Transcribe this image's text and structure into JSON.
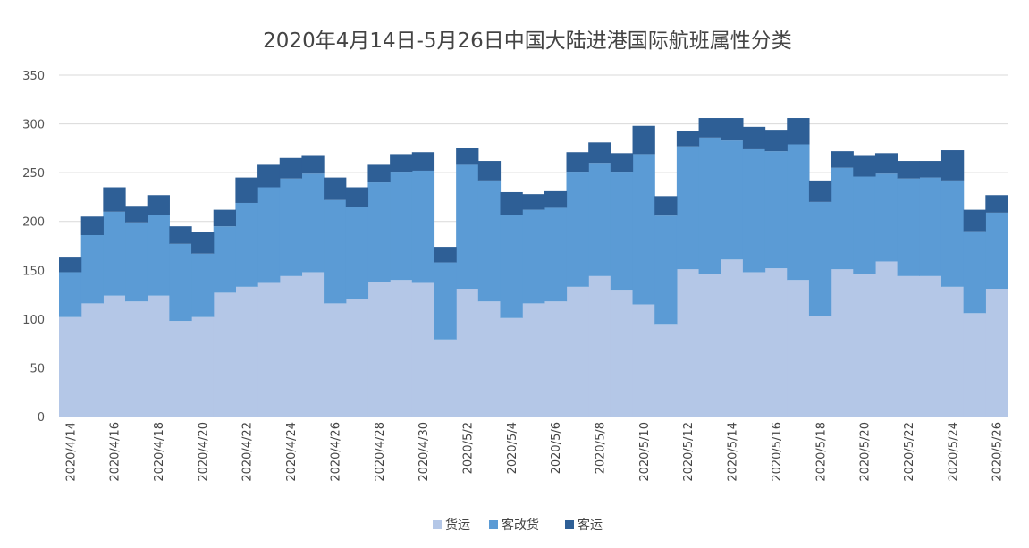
{
  "chart_data": {
    "type": "area",
    "stacked": true,
    "step": true,
    "title": "2020年4月14日-5月26日中国大陆进港国际航班属性分类",
    "xlabel": "",
    "ylabel": "",
    "ylim": [
      0,
      350
    ],
    "yticks": [
      0,
      50,
      100,
      150,
      200,
      250,
      300,
      350
    ],
    "grid": true,
    "legend_position": "bottom",
    "x": [
      "2020/4/14",
      "2020/4/15",
      "2020/4/16",
      "2020/4/17",
      "2020/4/18",
      "2020/4/19",
      "2020/4/20",
      "2020/4/21",
      "2020/4/22",
      "2020/4/23",
      "2020/4/24",
      "2020/4/25",
      "2020/4/26",
      "2020/4/27",
      "2020/4/28",
      "2020/4/29",
      "2020/4/30",
      "2020/5/1",
      "2020/5/2",
      "2020/5/3",
      "2020/5/4",
      "2020/5/5",
      "2020/5/6",
      "2020/5/7",
      "2020/5/8",
      "2020/5/9",
      "2020/5/10",
      "2020/5/11",
      "2020/5/12",
      "2020/5/13",
      "2020/5/14",
      "2020/5/15",
      "2020/5/16",
      "2020/5/17",
      "2020/5/18",
      "2020/5/19",
      "2020/5/20",
      "2020/5/21",
      "2020/5/22",
      "2020/5/23",
      "2020/5/24",
      "2020/5/25",
      "2020/5/26"
    ],
    "xtick_labels": [
      "2020/4/14",
      "2020/4/16",
      "2020/4/18",
      "2020/4/20",
      "2020/4/22",
      "2020/4/24",
      "2020/4/26",
      "2020/4/28",
      "2020/4/30",
      "2020/5/2",
      "2020/5/4",
      "2020/5/6",
      "2020/5/8",
      "2020/5/10",
      "2020/5/12",
      "2020/5/14",
      "2020/5/16",
      "2020/5/18",
      "2020/5/20",
      "2020/5/22",
      "2020/5/24",
      "2020/5/26"
    ],
    "series": [
      {
        "name": "货运",
        "color": "#b4c7e7",
        "values": [
          102,
          116,
          124,
          118,
          124,
          98,
          102,
          127,
          133,
          137,
          144,
          148,
          116,
          120,
          138,
          140,
          137,
          79,
          131,
          118,
          101,
          116,
          118,
          133,
          144,
          130,
          115,
          95,
          151,
          146,
          161,
          148,
          152,
          140,
          103,
          151,
          146,
          159,
          144,
          144,
          133,
          106,
          131
        ]
      },
      {
        "name": "客改货",
        "color": "#5b9bd5",
        "values": [
          46,
          70,
          86,
          81,
          83,
          79,
          65,
          68,
          86,
          98,
          100,
          101,
          106,
          95,
          102,
          111,
          115,
          79,
          127,
          124,
          106,
          96,
          96,
          118,
          116,
          121,
          154,
          111,
          126,
          140,
          122,
          126,
          120,
          139,
          117,
          104,
          100,
          90,
          100,
          101,
          109,
          84,
          78
        ]
      },
      {
        "name": "客运",
        "color": "#2e5f96",
        "values": [
          15,
          19,
          25,
          17,
          20,
          18,
          22,
          17,
          26,
          23,
          21,
          19,
          23,
          20,
          18,
          18,
          19,
          16,
          17,
          20,
          23,
          16,
          17,
          20,
          21,
          19,
          29,
          20,
          16,
          20,
          23,
          23,
          22,
          27,
          22,
          17,
          22,
          21,
          18,
          17,
          31,
          22,
          18
        ]
      }
    ]
  }
}
